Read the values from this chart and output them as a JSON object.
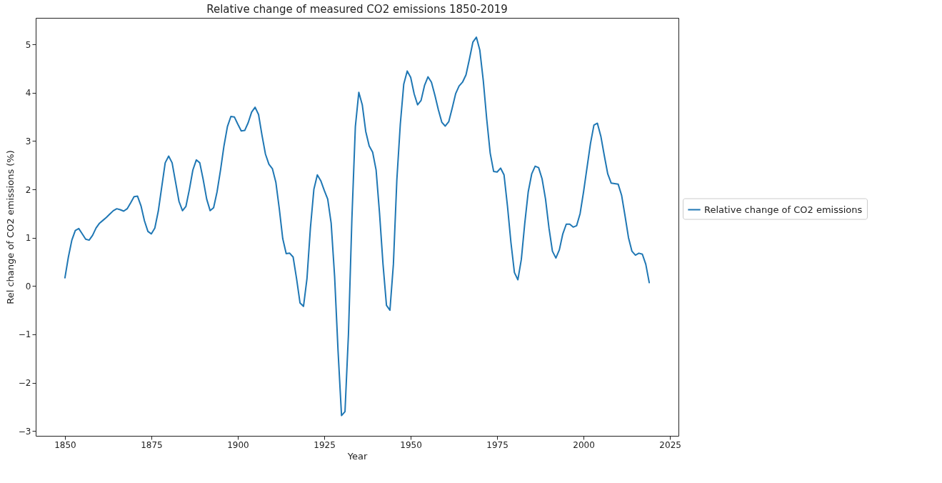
{
  "chart_data": {
    "type": "line",
    "title": "Relative change of measured CO2 emissions 1850-2019",
    "xlabel": "Year",
    "ylabel": "Rel change of CO2 emissions (%)",
    "x": [
      1850,
      1851,
      1852,
      1853,
      1854,
      1855,
      1856,
      1857,
      1858,
      1859,
      1860,
      1861,
      1862,
      1863,
      1864,
      1865,
      1866,
      1867,
      1868,
      1869,
      1870,
      1871,
      1872,
      1873,
      1874,
      1875,
      1876,
      1877,
      1878,
      1879,
      1880,
      1881,
      1882,
      1883,
      1884,
      1885,
      1886,
      1887,
      1888,
      1889,
      1890,
      1891,
      1892,
      1893,
      1894,
      1895,
      1896,
      1897,
      1898,
      1899,
      1900,
      1901,
      1902,
      1903,
      1904,
      1905,
      1906,
      1907,
      1908,
      1909,
      1910,
      1911,
      1912,
      1913,
      1914,
      1915,
      1916,
      1917,
      1918,
      1919,
      1920,
      1921,
      1922,
      1923,
      1924,
      1925,
      1926,
      1927,
      1928,
      1929,
      1930,
      1931,
      1932,
      1933,
      1934,
      1935,
      1936,
      1937,
      1938,
      1939,
      1940,
      1941,
      1942,
      1943,
      1944,
      1945,
      1946,
      1947,
      1948,
      1949,
      1950,
      1951,
      1952,
      1953,
      1954,
      1955,
      1956,
      1957,
      1958,
      1959,
      1960,
      1961,
      1962,
      1963,
      1964,
      1965,
      1966,
      1967,
      1968,
      1969,
      1970,
      1971,
      1972,
      1973,
      1974,
      1975,
      1976,
      1977,
      1978,
      1979,
      1980,
      1981,
      1982,
      1983,
      1984,
      1985,
      1986,
      1987,
      1988,
      1989,
      1990,
      1991,
      1992,
      1993,
      1994,
      1995,
      1996,
      1997,
      1998,
      1999,
      2000,
      2001,
      2002,
      2003,
      2004,
      2005,
      2006,
      2007,
      2008,
      2009,
      2010,
      2011,
      2012,
      2013,
      2014,
      2015,
      2016,
      2017,
      2018,
      2019
    ],
    "series": [
      {
        "name": "Relative change of CO2 emissions",
        "color": "#1f77b4",
        "values": [
          0.17,
          0.6,
          0.95,
          1.15,
          1.19,
          1.08,
          0.97,
          0.95,
          1.05,
          1.2,
          1.3,
          1.36,
          1.42,
          1.49,
          1.56,
          1.6,
          1.58,
          1.55,
          1.6,
          1.72,
          1.85,
          1.86,
          1.66,
          1.35,
          1.13,
          1.08,
          1.2,
          1.55,
          2.05,
          2.55,
          2.69,
          2.55,
          2.15,
          1.75,
          1.56,
          1.65,
          2.0,
          2.4,
          2.61,
          2.55,
          2.2,
          1.8,
          1.56,
          1.62,
          1.95,
          2.4,
          2.9,
          3.3,
          3.51,
          3.5,
          3.35,
          3.21,
          3.22,
          3.38,
          3.6,
          3.7,
          3.55,
          3.12,
          2.73,
          2.52,
          2.43,
          2.15,
          1.6,
          0.98,
          0.67,
          0.68,
          0.6,
          0.15,
          -0.35,
          -0.42,
          0.15,
          1.2,
          2.0,
          2.3,
          2.18,
          1.98,
          1.8,
          1.3,
          0.2,
          -1.35,
          -2.68,
          -2.6,
          -1.0,
          1.4,
          3.3,
          4.01,
          3.75,
          3.2,
          2.9,
          2.77,
          2.4,
          1.5,
          0.45,
          -0.4,
          -0.5,
          0.45,
          2.2,
          3.35,
          4.18,
          4.45,
          4.32,
          3.98,
          3.75,
          3.84,
          4.15,
          4.33,
          4.22,
          3.95,
          3.65,
          3.39,
          3.31,
          3.4,
          3.68,
          3.98,
          4.14,
          4.22,
          4.37,
          4.7,
          5.05,
          5.15,
          4.88,
          4.25,
          3.45,
          2.75,
          2.37,
          2.36,
          2.44,
          2.3,
          1.65,
          0.9,
          0.28,
          0.13,
          0.55,
          1.3,
          1.95,
          2.32,
          2.48,
          2.45,
          2.22,
          1.8,
          1.2,
          0.72,
          0.58,
          0.75,
          1.08,
          1.28,
          1.28,
          1.22,
          1.25,
          1.5,
          1.95,
          2.45,
          2.95,
          3.33,
          3.37,
          3.1,
          2.7,
          2.32,
          2.13,
          2.12,
          2.11,
          1.88,
          1.45,
          1.0,
          0.72,
          0.64,
          0.68,
          0.66,
          0.45,
          0.07
        ]
      }
    ],
    "xlim": [
      1841.55,
      2027.45
    ],
    "xticks": [
      1850,
      1875,
      1900,
      1925,
      1950,
      1975,
      2000,
      2025
    ],
    "ylim": [
      -3.1,
      5.55
    ],
    "yticks": [
      -3,
      -2,
      -1,
      0,
      1,
      2,
      3,
      4,
      5
    ],
    "legend": "right",
    "line_style": "solid",
    "marker": "none"
  }
}
